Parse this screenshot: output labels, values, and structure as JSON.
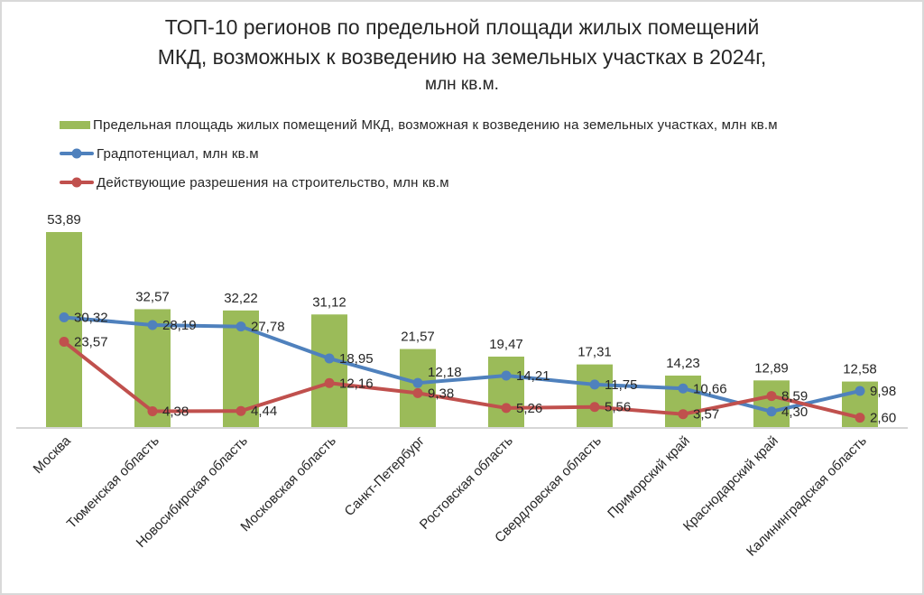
{
  "title": {
    "lines": [
      "ТОП-10 регионов по предельной площади жилых помещений",
      "МКД, возможных к возведению на земельных участках в 2024г,",
      "млн кв.м."
    ]
  },
  "chart_data": {
    "type": "bar+line combo",
    "categories": [
      "Москва",
      "Тюменская область",
      "Новосибирская область",
      "Московская область",
      "Санкт-Петербург",
      "Ростовская область",
      "Свердловская область",
      "Приморский край",
      "Краснодарский край",
      "Калининградская область"
    ],
    "series": [
      {
        "name": "Предельная площадь жилых помещений МКД, возможная к возведению на земельных участках, млн кв.м",
        "type": "bar",
        "color": "#9bbb59",
        "values": [
          53.89,
          32.57,
          32.22,
          31.12,
          21.57,
          19.47,
          17.31,
          14.23,
          12.89,
          12.58
        ]
      },
      {
        "name": "Градпотенциал, млн кв.м",
        "type": "line",
        "color": "#4f81bd",
        "values": [
          30.32,
          28.19,
          27.78,
          18.95,
          12.18,
          14.21,
          11.75,
          10.66,
          4.3,
          9.98
        ]
      },
      {
        "name": "Действующие разрешения на строительство, млн кв.м",
        "type": "line",
        "color": "#c0504d",
        "values": [
          23.57,
          4.38,
          4.44,
          12.16,
          9.38,
          5.26,
          5.56,
          3.57,
          8.59,
          2.6
        ]
      }
    ],
    "ylim": [
      0,
      62
    ],
    "grid": false,
    "legend_position": "top-left",
    "value_labels_visible": true,
    "decimal_separator": ",",
    "x_tick_rotation_deg": 45,
    "axis_line_color": "#d6d6d6",
    "label_color": "#262626",
    "background_color": "#ffffff"
  }
}
